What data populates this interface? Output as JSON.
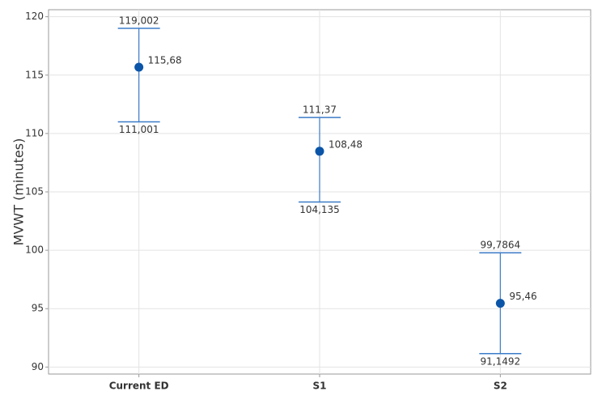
{
  "chart_data": {
    "type": "interval",
    "y_label": "MVWT (minutes)",
    "categories": [
      "Current ED",
      "S1",
      "S2"
    ],
    "values": [
      115.68,
      108.48,
      95.46
    ],
    "value_labels": [
      "115,68",
      "108,48",
      "95,46"
    ],
    "upper": [
      119.002,
      111.37,
      99.7864
    ],
    "upper_labels": [
      "119,002",
      "111,37",
      "99,7864"
    ],
    "lower": [
      111.001,
      104.135,
      91.1492
    ],
    "lower_labels": [
      "111,001",
      "104,135",
      "91,1492"
    ],
    "color": "#0b55a8",
    "interval_color": "#3b7bc8",
    "ylim": [
      89.4,
      120.6
    ],
    "yticks": [
      90,
      95,
      100,
      105,
      110,
      115,
      120
    ],
    "grid": true
  }
}
